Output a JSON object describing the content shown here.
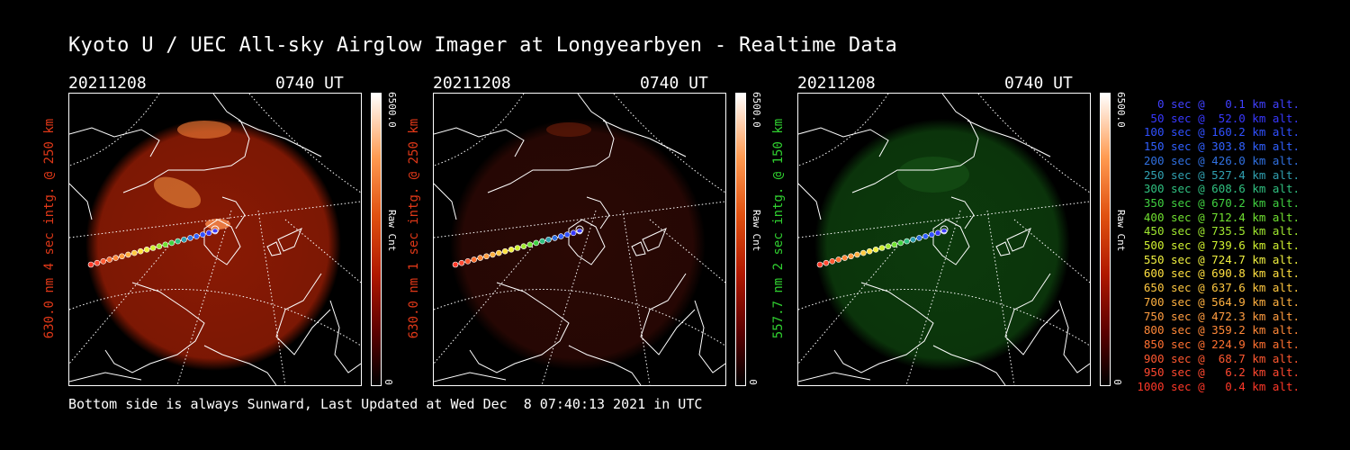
{
  "title": "Kyoto U / UEC All-sky Airglow Imager at Longyearbyen - Realtime Data",
  "footer": "Bottom side is always Sunward, Last Updated at Wed Dec  8 07:40:13 2021 in UTC",
  "panels": [
    {
      "date": "20211208",
      "time": "0740 UT",
      "ylabel": "630.0 nm 4 sec intg. @ 250 km",
      "cbar_max": "6500.0",
      "cbar_min": "0",
      "cbar_label": "Raw Cnt",
      "color": "#e03818",
      "fill": "#8a1a04"
    },
    {
      "date": "20211208",
      "time": "0740 UT",
      "ylabel": "630.0 nm 1 sec intg. @ 250 km",
      "cbar_max": "6500.0",
      "cbar_min": "0",
      "cbar_label": "Raw Cnt",
      "color": "#e03818",
      "fill": "#2a0804"
    },
    {
      "date": "20211208",
      "time": "0740 UT",
      "ylabel": "557.7 nm 2 sec intg. @ 150 km",
      "cbar_max": "6500.0",
      "cbar_min": "0",
      "cbar_label": "Raw Cnt",
      "color": "#30d030",
      "fill": "#0c3a0c"
    }
  ],
  "legend": [
    {
      "text": "0 sec @   0.1 km alt.",
      "color": "#4040ff"
    },
    {
      "text": "50 sec @  52.0 km alt.",
      "color": "#3838ff"
    },
    {
      "text": "100 sec @ 160.2 km alt.",
      "color": "#3050ff"
    },
    {
      "text": "150 sec @ 303.8 km alt.",
      "color": "#3060ff"
    },
    {
      "text": "200 sec @ 426.0 km alt.",
      "color": "#3070e0"
    },
    {
      "text": "250 sec @ 527.4 km alt.",
      "color": "#30a0b0"
    },
    {
      "text": "300 sec @ 608.6 km alt.",
      "color": "#30c080"
    },
    {
      "text": "350 sec @ 670.2 km alt.",
      "color": "#40d040"
    },
    {
      "text": "400 sec @ 712.4 km alt.",
      "color": "#70e030"
    },
    {
      "text": "450 sec @ 735.5 km alt.",
      "color": "#a0e830"
    },
    {
      "text": "500 sec @ 739.6 km alt.",
      "color": "#d0f030"
    },
    {
      "text": "550 sec @ 724.7 km alt.",
      "color": "#f0f040"
    },
    {
      "text": "600 sec @ 690.8 km alt.",
      "color": "#ffe040"
    },
    {
      "text": "650 sec @ 637.6 km alt.",
      "color": "#ffc840"
    },
    {
      "text": "700 sec @ 564.9 km alt.",
      "color": "#ffb040"
    },
    {
      "text": "750 sec @ 472.3 km alt.",
      "color": "#ff9c40"
    },
    {
      "text": "800 sec @ 359.2 km alt.",
      "color": "#ff8838"
    },
    {
      "text": "850 sec @ 224.9 km alt.",
      "color": "#ff7030"
    },
    {
      "text": "900 sec @  68.7 km alt.",
      "color": "#ff5830"
    },
    {
      "text": "950 sec @   6.2 km alt.",
      "color": "#ff4830"
    },
    {
      "text": "1000 sec @   0.4 km alt.",
      "color": "#ff3828"
    }
  ],
  "chart_data": {
    "type": "heatmap",
    "title": "Kyoto U / UEC All-sky Airglow Imager at Longyearbyen - Realtime Data",
    "images": [
      {
        "date": "20211208",
        "time": "0740 UT",
        "wavelength_nm": 630.0,
        "integration_sec": 4,
        "altitude_km": 250,
        "colorbar_range": [
          0,
          6500.0
        ],
        "colorbar_label": "Raw Cnt"
      },
      {
        "date": "20211208",
        "time": "0740 UT",
        "wavelength_nm": 630.0,
        "integration_sec": 1,
        "altitude_km": 250,
        "colorbar_range": [
          0,
          6500.0
        ],
        "colorbar_label": "Raw Cnt"
      },
      {
        "date": "20211208",
        "time": "0740 UT",
        "wavelength_nm": 557.7,
        "integration_sec": 2,
        "altitude_km": 150,
        "colorbar_range": [
          0,
          6500.0
        ],
        "colorbar_label": "Raw Cnt"
      }
    ],
    "trajectory": {
      "time_sec": [
        0,
        50,
        100,
        150,
        200,
        250,
        300,
        350,
        400,
        450,
        500,
        550,
        600,
        650,
        700,
        750,
        800,
        850,
        900,
        950,
        1000
      ],
      "altitude_km": [
        0.1,
        52.0,
        160.2,
        303.8,
        426.0,
        527.4,
        608.6,
        670.2,
        712.4,
        735.5,
        739.6,
        724.7,
        690.8,
        637.6,
        564.9,
        472.3,
        359.2,
        224.9,
        68.7,
        6.2,
        0.4
      ]
    }
  }
}
